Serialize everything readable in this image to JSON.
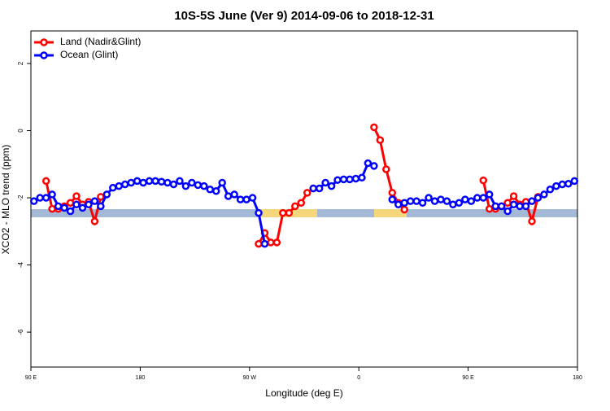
{
  "chart_data": {
    "type": "line",
    "title": "10S-5S June (Ver 9)   2014-09-06 to 2018-12-31",
    "x_label": "Longitude (deg E)",
    "y_label": "XCO2 - MLO trend (ppm)",
    "x": [
      92.5,
      97.5,
      102.5,
      107.5,
      112.5,
      117.5,
      122.5,
      127.5,
      132.5,
      137.5,
      142.5,
      147.5,
      152.5,
      157.5,
      162.5,
      167.5,
      172.5,
      177.5,
      182.5,
      187.5,
      192.5,
      197.5,
      202.5,
      207.5,
      212.5,
      217.5,
      222.5,
      227.5,
      232.5,
      237.5,
      242.5,
      247.5,
      252.5,
      257.5,
      262.5,
      267.5,
      272.5,
      277.5,
      282.5,
      287.5,
      292.5,
      297.5,
      302.5,
      307.5,
      312.5,
      317.5,
      322.5,
      327.5,
      332.5,
      337.5,
      342.5,
      347.5,
      352.5,
      357.5,
      362.5,
      367.5,
      372.5,
      377.5,
      382.5,
      387.5,
      392.5,
      397.5,
      402.5,
      407.5,
      412.5,
      417.5,
      422.5,
      427.5,
      432.5,
      437.5,
      442.5,
      447.5,
      452.5,
      457.5,
      462.5,
      467.5,
      472.5,
      477.5,
      482.5,
      487.5,
      492.5,
      497.5,
      502.5,
      507.5,
      512.5,
      517.5,
      522.5,
      527.5,
      532.5,
      537.5
    ],
    "series": [
      {
        "name": "Land (Nadir&Glint)",
        "color": "#ff0000",
        "values": [
          null,
          null,
          -1.5,
          -2.33,
          -2.33,
          -2.25,
          -2.15,
          -1.95,
          -2.2,
          -2.12,
          -2.7,
          -1.97,
          null,
          null,
          null,
          null,
          null,
          null,
          null,
          null,
          null,
          null,
          null,
          null,
          null,
          null,
          null,
          null,
          null,
          null,
          null,
          null,
          null,
          null,
          null,
          null,
          null,
          -3.37,
          -3.05,
          -3.33,
          -3.33,
          -2.45,
          -2.45,
          -2.25,
          -2.15,
          -1.85,
          -1.72,
          null,
          null,
          null,
          null,
          null,
          null,
          null,
          null,
          null,
          0.1,
          -0.28,
          -1.15,
          -1.85,
          -2.15,
          -2.35,
          null,
          null,
          null,
          null,
          null,
          null,
          null,
          null,
          null,
          null,
          null,
          null,
          -1.48,
          -2.33,
          -2.33,
          -2.25,
          -2.15,
          -1.95,
          -2.2,
          -2.12,
          -2.7,
          -1.97,
          null,
          null,
          null,
          null,
          null,
          null
        ]
      },
      {
        "name": "Ocean (Glint)",
        "color": "#0000ff",
        "values": [
          -2.1,
          -2.0,
          -2.0,
          -1.9,
          -2.25,
          -2.3,
          -2.4,
          -2.2,
          -2.3,
          -2.2,
          -2.1,
          -2.25,
          -1.9,
          -1.7,
          -1.65,
          -1.6,
          -1.55,
          -1.5,
          -1.55,
          -1.5,
          -1.5,
          -1.52,
          -1.55,
          -1.6,
          -1.5,
          -1.65,
          -1.55,
          -1.62,
          -1.65,
          -1.75,
          -1.8,
          -1.55,
          -1.95,
          -1.9,
          -2.05,
          -2.05,
          -2.0,
          -2.45,
          -3.37,
          null,
          null,
          null,
          null,
          null,
          null,
          null,
          -1.72,
          -1.72,
          -1.55,
          -1.65,
          -1.47,
          -1.45,
          -1.45,
          -1.43,
          -1.4,
          -0.97,
          -1.05,
          null,
          null,
          -2.05,
          -2.2,
          -2.15,
          -2.1,
          -2.1,
          -2.15,
          -2.0,
          -2.1,
          -2.05,
          -2.1,
          -2.2,
          -2.15,
          -2.05,
          -2.1,
          -2.0,
          -2.0,
          -1.9,
          -2.25,
          -2.25,
          -2.4,
          -2.2,
          -2.25,
          -2.25,
          -2.1,
          -2.0,
          -1.9,
          -1.75,
          -1.65,
          -1.6,
          -1.58,
          -1.5
        ]
      }
    ],
    "xlim": [
      90,
      540
    ],
    "ylim": [
      -7.04,
      2.97
    ],
    "xticks": [
      {
        "value": 90,
        "label": "90 E"
      },
      {
        "value": 180,
        "label": "180"
      },
      {
        "value": 270,
        "label": "90 W"
      },
      {
        "value": 360,
        "label": "0"
      },
      {
        "value": 450,
        "label": "90 E"
      },
      {
        "value": 540,
        "label": "180"
      }
    ],
    "yticks": [
      -6,
      -4,
      -2,
      0,
      2
    ],
    "legend": "topleft"
  }
}
